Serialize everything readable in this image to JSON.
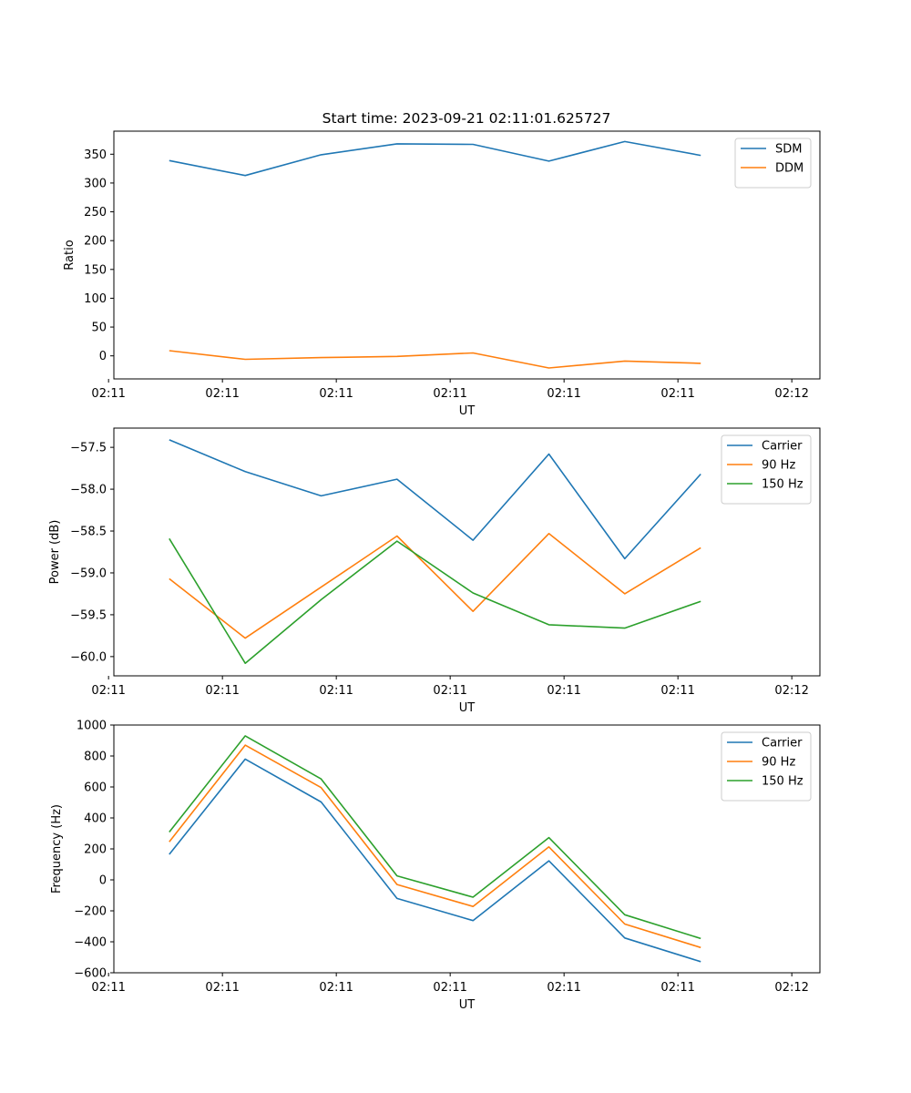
{
  "title": "Start time: 2023-09-21 02:11:01.625727",
  "x_tick_labels": [
    "02:11",
    "02:11",
    "02:11",
    "02:11",
    "02:11",
    "02:11",
    "02:12"
  ],
  "xlabel": "UT",
  "chart_data": [
    {
      "type": "line",
      "title": "Start time: 2023-09-21 02:11:01.625727",
      "xlabel": "UT",
      "ylabel": "Ratio",
      "x": [
        1,
        2,
        3,
        4,
        5,
        6,
        7,
        8
      ],
      "xlim": [
        0.27,
        9.57
      ],
      "ylim": [
        -40,
        390
      ],
      "y_ticks": [
        0,
        50,
        100,
        150,
        200,
        250,
        300,
        350
      ],
      "x_ticks": [
        0.2,
        1.7,
        3.2,
        4.7,
        6.2,
        7.7,
        9.2
      ],
      "series": [
        {
          "name": "SDM",
          "color": "#1f77b4",
          "values": [
            339,
            313,
            349,
            368,
            367,
            338,
            372,
            348
          ]
        },
        {
          "name": "DDM",
          "color": "#ff7f0e",
          "values": [
            9,
            -6,
            -3,
            -1,
            5,
            -21,
            -9,
            -13
          ]
        }
      ],
      "legend": "top-right"
    },
    {
      "type": "line",
      "xlabel": "UT",
      "ylabel": "Power (dB)",
      "x": [
        1,
        2,
        3,
        4,
        5,
        6,
        7,
        8
      ],
      "xlim": [
        0.27,
        9.57
      ],
      "ylim": [
        -60.23,
        -57.27
      ],
      "y_ticks": [
        -60.0,
        -59.5,
        -59.0,
        -58.5,
        -58.0,
        -57.5
      ],
      "x_ticks": [
        0.2,
        1.7,
        3.2,
        4.7,
        6.2,
        7.7,
        9.2
      ],
      "series": [
        {
          "name": "Carrier",
          "color": "#1f77b4",
          "values": [
            -57.41,
            -57.79,
            -58.08,
            -57.88,
            -58.61,
            -57.58,
            -58.83,
            -57.82
          ]
        },
        {
          "name": "90 Hz",
          "color": "#ff7f0e",
          "values": [
            -59.07,
            -59.78,
            -59.17,
            -58.56,
            -59.46,
            -58.53,
            -59.25,
            -58.7
          ]
        },
        {
          "name": "150 Hz",
          "color": "#2ca02c",
          "values": [
            -58.59,
            -60.08,
            -59.32,
            -58.62,
            -59.24,
            -59.62,
            -59.66,
            -59.34
          ]
        }
      ],
      "legend": "top-right"
    },
    {
      "type": "line",
      "xlabel": "UT",
      "ylabel": "Frequency (Hz)",
      "x": [
        1,
        2,
        3,
        4,
        5,
        6,
        7,
        8
      ],
      "xlim": [
        0.27,
        9.57
      ],
      "ylim": [
        -600,
        1000
      ],
      "y_ticks": [
        -600,
        -400,
        -200,
        0,
        200,
        400,
        600,
        800,
        1000
      ],
      "x_ticks": [
        0.2,
        1.7,
        3.2,
        4.7,
        6.2,
        7.7,
        9.2
      ],
      "series": [
        {
          "name": "Carrier",
          "color": "#1f77b4",
          "values": [
            165,
            780,
            503,
            -120,
            -263,
            123,
            -375,
            -528
          ]
        },
        {
          "name": "90 Hz",
          "color": "#ff7f0e",
          "values": [
            246,
            870,
            596,
            -30,
            -172,
            213,
            -285,
            -437
          ]
        },
        {
          "name": "150 Hz",
          "color": "#2ca02c",
          "values": [
            309,
            930,
            652,
            26,
            -112,
            273,
            -225,
            -379
          ]
        }
      ],
      "legend": "top-right"
    }
  ]
}
